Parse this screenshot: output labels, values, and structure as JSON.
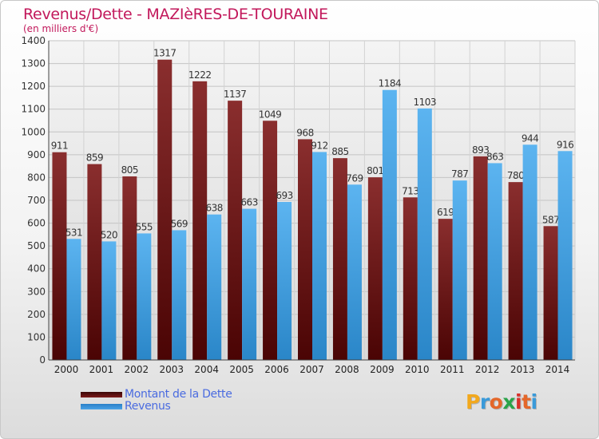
{
  "header": {
    "title": "Revenus/Dette - MAZIèRES-DE-TOURAINE",
    "subtitle": "(en milliers d'€)"
  },
  "legend": {
    "items": [
      {
        "label": "Montant de la Dette",
        "color": "#7b1a1a"
      },
      {
        "label": "Revenus",
        "color": "#4aa3e6"
      }
    ]
  },
  "logo": {
    "letters": [
      "P",
      "r",
      "o",
      "x",
      "i",
      "t",
      "i"
    ],
    "colors": [
      "#f2a81d",
      "#3a9ad9",
      "#e4672a",
      "#2aa34a",
      "#d9302a",
      "#e4672a",
      "#3a9ad9"
    ]
  },
  "chart_data": {
    "type": "bar",
    "categories": [
      "2000",
      "2001",
      "2002",
      "2003",
      "2004",
      "2005",
      "2006",
      "2007",
      "2008",
      "2009",
      "2010",
      "2011",
      "2012",
      "2013",
      "2014"
    ],
    "series": [
      {
        "name": "Montant de la Dette",
        "color": "#7b1a1a",
        "values": [
          911,
          859,
          805,
          1317,
          1222,
          1137,
          1049,
          968,
          885,
          801,
          713,
          619,
          893,
          780,
          587
        ]
      },
      {
        "name": "Revenus",
        "color": "#4aa3e6",
        "values": [
          531,
          520,
          555,
          569,
          638,
          663,
          693,
          912,
          769,
          1184,
          1103,
          787,
          863,
          944,
          916
        ]
      }
    ],
    "title": "Revenus/Dette - MAZIèRES-DE-TOURAINE",
    "ylabel": "(en milliers d'€)",
    "ylim": [
      0,
      1400
    ],
    "yticks": [
      "0",
      "100",
      "200",
      "300",
      "400",
      "500",
      "600",
      "700",
      "800",
      "900",
      "1000",
      "1100",
      "1200",
      "1300",
      "1400"
    ],
    "grid": true,
    "legend_position": "bottom-left"
  }
}
